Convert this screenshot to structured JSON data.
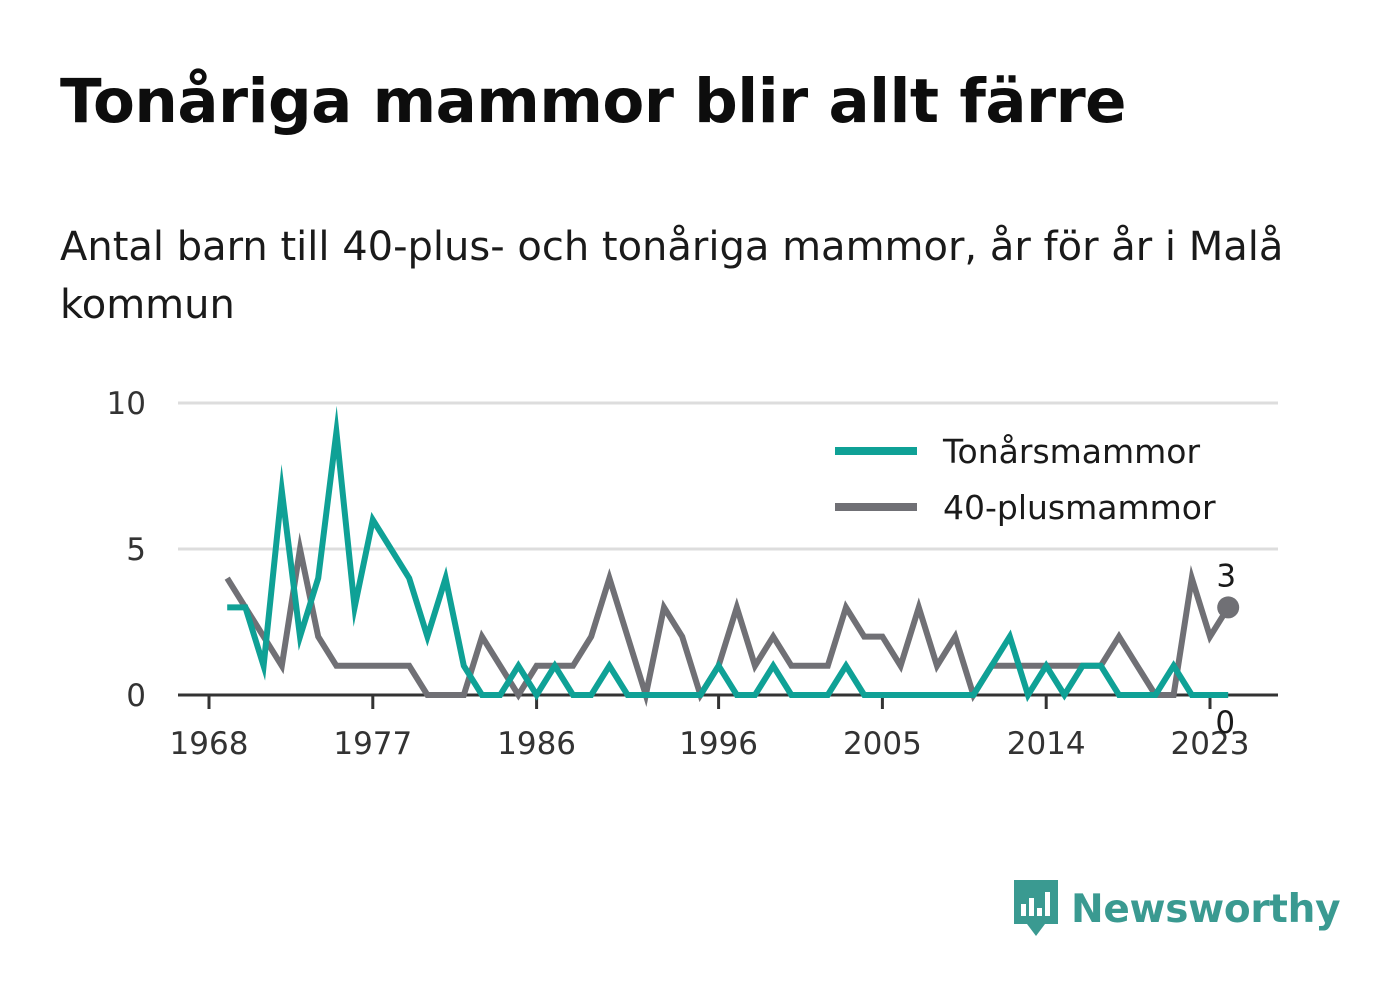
{
  "title": "Tonåriga mammor blir allt färre",
  "subtitle": "Antal barn till 40-plus- och tonåriga mammor, år för år i Malå kommun",
  "brand": "Newsworthy",
  "colors": {
    "teen": "#0fa196",
    "forty": "#707075",
    "grid": "#dddddd",
    "axis": "#333333"
  },
  "icons": {
    "logo": "newsworthy-logo-icon"
  },
  "chart_data": {
    "type": "line",
    "x": [
      1969,
      1970,
      1971,
      1972,
      1973,
      1974,
      1975,
      1976,
      1977,
      1978,
      1979,
      1980,
      1981,
      1982,
      1983,
      1984,
      1985,
      1986,
      1987,
      1988,
      1989,
      1990,
      1991,
      1992,
      1993,
      1994,
      1995,
      1996,
      1997,
      1998,
      1999,
      2000,
      2001,
      2002,
      2003,
      2004,
      2005,
      2006,
      2007,
      2008,
      2009,
      2010,
      2011,
      2012,
      2013,
      2014,
      2015,
      2016,
      2017,
      2018,
      2019,
      2020,
      2021,
      2022,
      2023,
      2024
    ],
    "x_ticks": [
      "1968",
      "1977",
      "1986",
      "1996",
      "2005",
      "2014",
      "2023"
    ],
    "y_ticks": [
      "0",
      "5",
      "10"
    ],
    "ylim": [
      0,
      10
    ],
    "grid": true,
    "legend_position": "top-right",
    "series": [
      {
        "name": "Tonårsmammor",
        "color": "#0fa196",
        "values": [
          3,
          3,
          1,
          7,
          2,
          4,
          9,
          3,
          6,
          5,
          4,
          2,
          4,
          1,
          0,
          0,
          1,
          0,
          1,
          0,
          0,
          1,
          0,
          0,
          0,
          0,
          0,
          1,
          0,
          0,
          1,
          0,
          0,
          0,
          1,
          0,
          0,
          0,
          0,
          0,
          0,
          0,
          1,
          2,
          0,
          1,
          0,
          1,
          1,
          0,
          0,
          0,
          1,
          0,
          0,
          0
        ],
        "end_label": "0"
      },
      {
        "name": "40-plusmammor",
        "color": "#707075",
        "values": [
          4,
          3,
          2,
          1,
          5,
          2,
          1,
          1,
          1,
          1,
          1,
          0,
          0,
          0,
          2,
          1,
          0,
          1,
          1,
          1,
          2,
          4,
          2,
          0,
          3,
          2,
          0,
          1,
          3,
          1,
          2,
          1,
          1,
          1,
          3,
          2,
          2,
          1,
          3,
          1,
          2,
          0,
          1,
          1,
          1,
          1,
          1,
          1,
          1,
          2,
          1,
          0,
          0,
          4,
          2,
          3
        ],
        "end_label": "3"
      }
    ]
  }
}
